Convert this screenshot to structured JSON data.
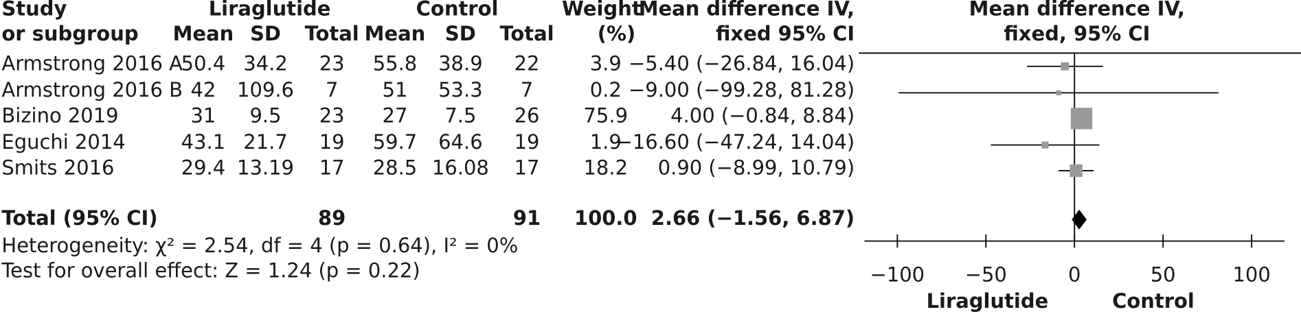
{
  "table": {
    "headers": {
      "study": [
        "Study",
        "or subgroup"
      ],
      "group1": "Liraglutide",
      "group2": "Control",
      "sub": [
        "Mean",
        "SD",
        "Total",
        "Mean",
        "SD",
        "Total"
      ],
      "weight": [
        "Weight",
        "(%)"
      ],
      "effect": [
        "Mean difference IV,",
        "fixed 95% CI"
      ]
    },
    "rows": [
      [
        "Armstrong 2016 A",
        "50.4",
        "34.2",
        "23",
        "55.8",
        "38.9",
        "22",
        "3.9",
        "−5.40 (−26.84, 16.04)"
      ],
      [
        "Armstrong 2016 B",
        "42",
        "109.6",
        "7",
        "51",
        "53.3",
        "7",
        "0.2",
        "−9.00 (−99.28, 81.28)"
      ],
      [
        "Bizino 2019",
        "31",
        "9.5",
        "23",
        "27",
        "7.5",
        "26",
        "75.9",
        "4.00 (−0.84, 8.84)"
      ],
      [
        "Eguchi 2014",
        "43.1",
        "21.7",
        "19",
        "59.7",
        "64.6",
        "19",
        "1.9",
        "−16.60 (−47.24, 14.04)"
      ],
      [
        "Smits 2016",
        "29.4",
        "13.19",
        "17",
        "28.5",
        "16.08",
        "17",
        "18.2",
        "0.90 (−8.99, 10.79)"
      ]
    ],
    "total": [
      "Total (95% CI)",
      "89",
      "91",
      "100.0",
      "2.66 (−1.56, 6.87)"
    ],
    "heterogeneity": "Heterogeneity: χ² = 2.54, df = 4 (p = 0.64), I² = 0%",
    "overall": "Test for overall effect: Z = 1.24 (p = 0.22)"
  },
  "chart_data": {
    "type": "forest",
    "title": [
      "Mean difference IV,",
      "fixed, 95% CI"
    ],
    "values": [
      -5.4,
      -9.0,
      4.0,
      -16.6,
      0.9
    ],
    "ci_lower": [
      -26.84,
      -99.28,
      -0.84,
      -47.24,
      -8.99
    ],
    "ci_upper": [
      16.04,
      81.28,
      8.84,
      14.04,
      10.79
    ],
    "weights": [
      3.9,
      0.2,
      75.9,
      1.9,
      18.2
    ],
    "total": {
      "value": 2.66,
      "lower": -1.56,
      "upper": 6.87
    },
    "xlim": [
      -118.5,
      118.5
    ],
    "xticks": [
      {
        "value": -100,
        "label": "−100"
      },
      {
        "value": -50,
        "label": "−50"
      },
      0,
      50,
      100
    ],
    "x_labels": [
      "Liraglutide",
      "Control"
    ],
    "color": "#999999"
  }
}
